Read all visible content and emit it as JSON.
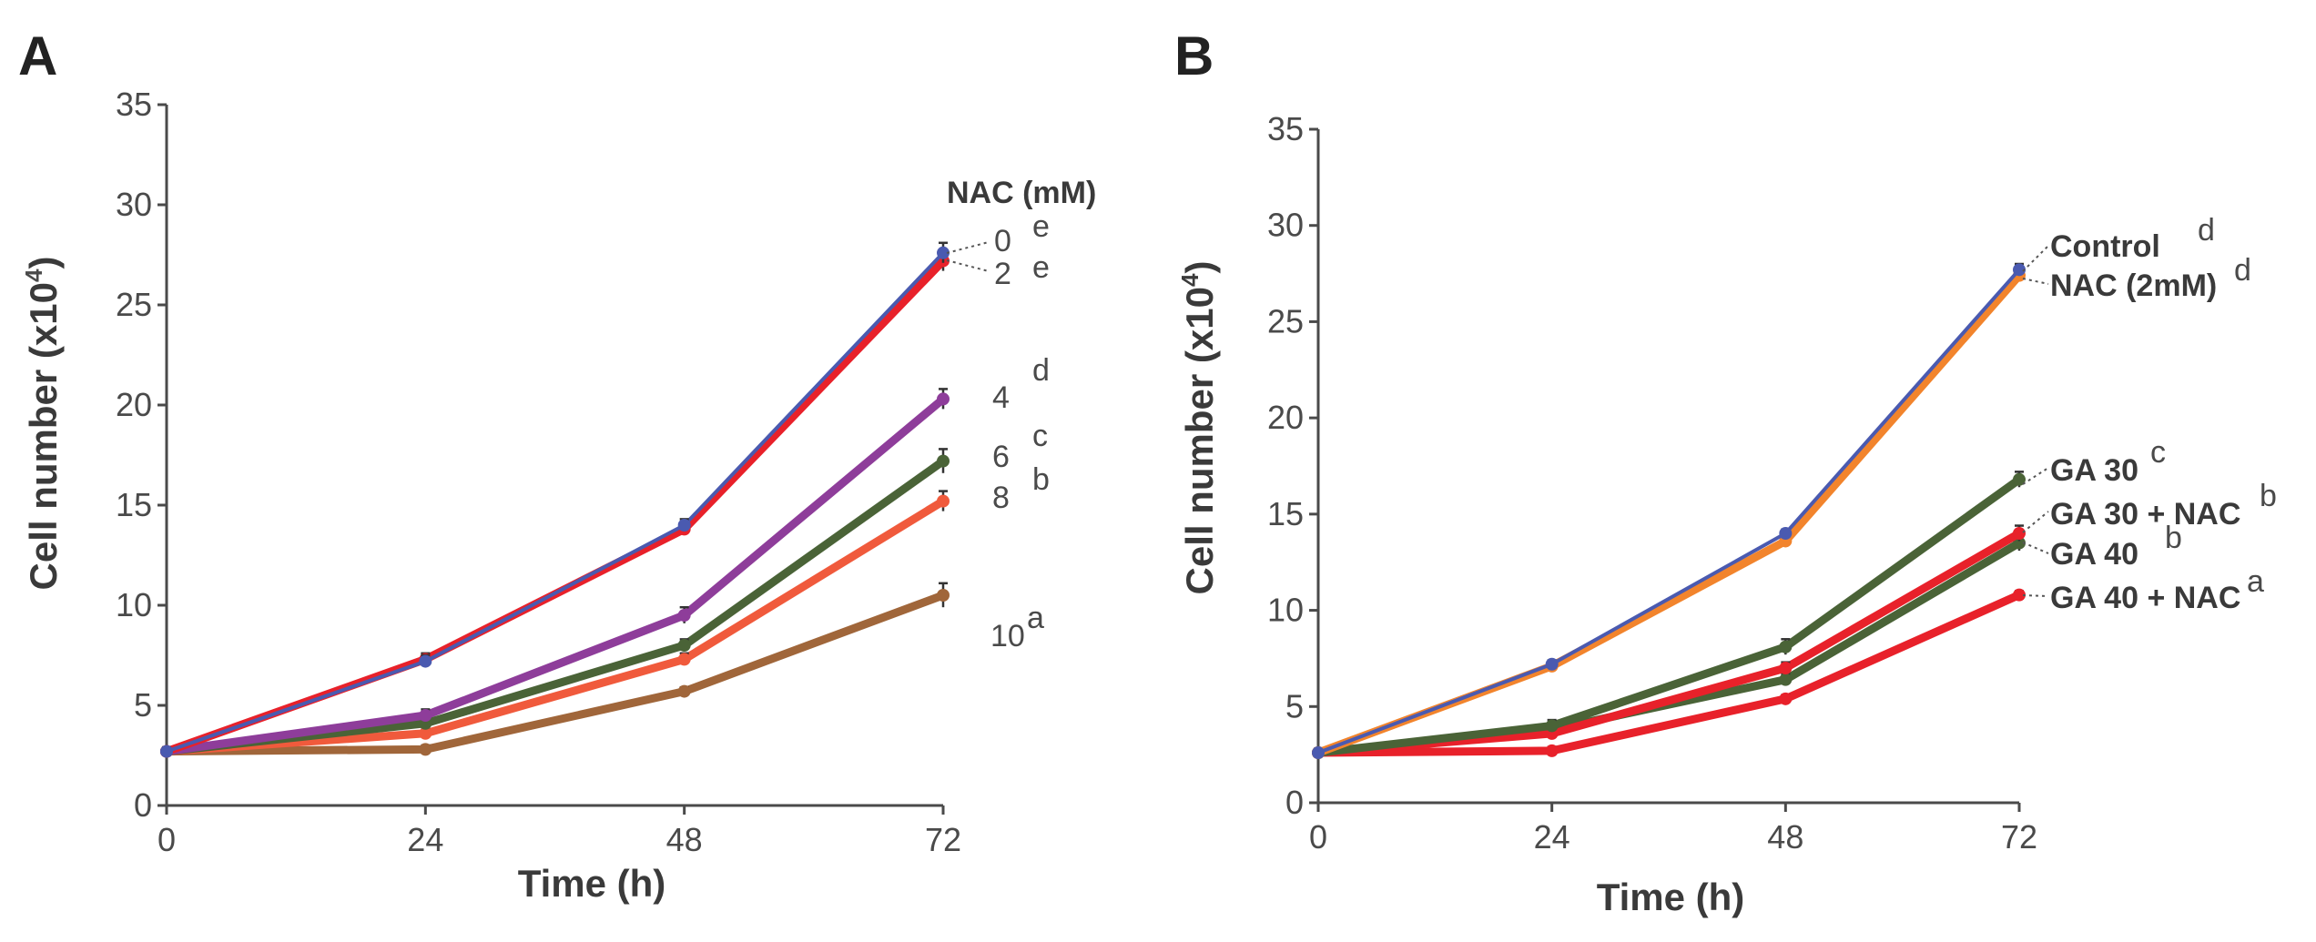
{
  "chart_data": [
    {
      "panel": "A",
      "type": "line",
      "xlabel": "Time (h)",
      "ylabel": "Cell number (x10",
      "ylabel_exp": "4",
      "ylabel_end": ")",
      "x": [
        0,
        24,
        48,
        72
      ],
      "xlim": [
        0,
        72
      ],
      "ylim": [
        0,
        35
      ],
      "xticks": [
        0,
        24,
        48,
        72
      ],
      "yticks": [
        0,
        5,
        10,
        15,
        20,
        25,
        30,
        35
      ],
      "legend_title": "NAC (mM)",
      "series": [
        {
          "name": "0",
          "sig": "e",
          "color": "#4a5ab0",
          "values": [
            2.7,
            7.2,
            14.0,
            27.6
          ],
          "err": [
            0.2,
            0.3,
            0.3,
            0.5
          ]
        },
        {
          "name": "2",
          "sig": "e",
          "color": "#e8212a",
          "values": [
            2.7,
            7.3,
            13.8,
            27.2
          ],
          "err": [
            0.2,
            0.3,
            0.3,
            0.5
          ]
        },
        {
          "name": "4",
          "sig": "d",
          "color": "#8e3d9a",
          "values": [
            2.7,
            4.5,
            9.5,
            20.3
          ],
          "err": [
            0.2,
            0.3,
            0.4,
            0.5
          ]
        },
        {
          "name": "6",
          "sig": "c",
          "color": "#4a6337",
          "values": [
            2.7,
            4.1,
            8.0,
            17.2
          ],
          "err": [
            0.2,
            0.3,
            0.3,
            0.6
          ]
        },
        {
          "name": "8",
          "sig": "b",
          "color": "#f05a3c",
          "values": [
            2.7,
            3.6,
            7.3,
            15.2
          ],
          "err": [
            0.2,
            0.3,
            0.3,
            0.5
          ]
        },
        {
          "name": "10",
          "sig": "a",
          "color": "#a0663a",
          "values": [
            2.7,
            2.8,
            5.7,
            10.5
          ],
          "err": [
            0.2,
            0.2,
            0.2,
            0.6
          ]
        }
      ]
    },
    {
      "panel": "B",
      "type": "line",
      "xlabel": "Time (h)",
      "ylabel": "Cell number (x10",
      "ylabel_exp": "4",
      "ylabel_end": ")",
      "x": [
        0,
        24,
        48,
        72
      ],
      "xlim": [
        0,
        72
      ],
      "ylim": [
        0,
        35
      ],
      "xticks": [
        0,
        24,
        48,
        72
      ],
      "yticks": [
        0,
        5,
        10,
        15,
        20,
        25,
        30,
        35
      ],
      "series": [
        {
          "name": "Control",
          "sig": "d",
          "color": "#4a5ab0",
          "values": [
            2.6,
            7.2,
            14.0,
            27.7
          ],
          "err": [
            0.1,
            0.2,
            0.2,
            0.3
          ]
        },
        {
          "name": "NAC (2mM)",
          "sig": "d",
          "color": "#f2842c",
          "values": [
            2.6,
            7.1,
            13.6,
            27.4
          ],
          "err": [
            0.1,
            0.2,
            0.2,
            0.3
          ]
        },
        {
          "name": "GA 30",
          "sig": "c",
          "color": "#4a6337",
          "values": [
            2.6,
            4.0,
            8.1,
            16.8
          ],
          "err": [
            0.2,
            0.3,
            0.4,
            0.4
          ]
        },
        {
          "name": "GA 30 + NAC",
          "sig": "b",
          "color": "#e8212a",
          "values": [
            2.6,
            3.6,
            7.0,
            14.0
          ],
          "err": [
            0.2,
            0.3,
            0.3,
            0.4
          ]
        },
        {
          "name": "GA 40",
          "sig": "b",
          "color": "#4a6337",
          "values": [
            2.6,
            3.8,
            6.4,
            13.5
          ],
          "err": [
            0.2,
            0.3,
            0.3,
            0.4
          ]
        },
        {
          "name": "GA 40 + NAC",
          "sig": "a",
          "color": "#e8212a",
          "values": [
            2.6,
            2.7,
            5.4,
            10.8
          ],
          "err": [
            0.1,
            0.2,
            0.2,
            0.2
          ]
        }
      ]
    }
  ]
}
